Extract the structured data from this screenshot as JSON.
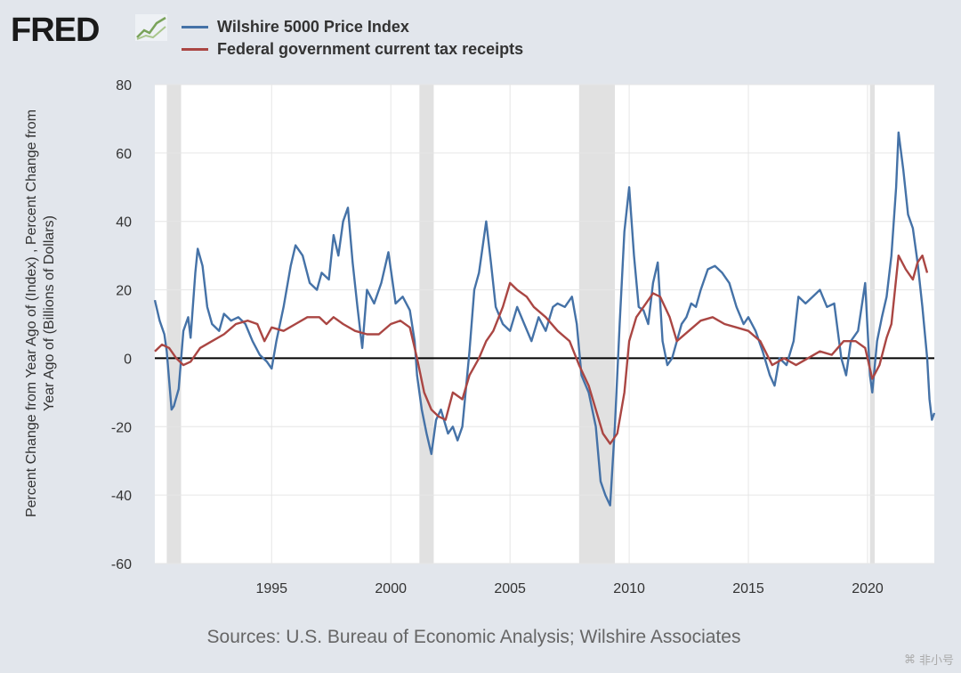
{
  "logo": {
    "text": "FRED"
  },
  "legend": [
    {
      "label": "Wilshire 5000 Price Index",
      "color": "#4572a7"
    },
    {
      "label": "Federal government current tax receipts",
      "color": "#aa4643"
    }
  ],
  "source": "Sources: U.S. Bureau of Economic Analysis; Wilshire Associates",
  "watermark": "非小号",
  "chart_data": {
    "type": "line",
    "ylabel": "Percent Change from Year Ago of (Index) , Percent Change from Year Ago of (Billions of Dollars)",
    "ylim": [
      -60,
      80
    ],
    "yticks": [
      "80",
      "60",
      "40",
      "20",
      "0",
      "-20",
      "-40",
      "-60"
    ],
    "xlim": [
      1990.1,
      2022.8
    ],
    "xticks": [
      1995,
      2000,
      2005,
      2010,
      2015,
      2020
    ],
    "xtick_labels": [
      "1995",
      "2000",
      "2005",
      "2010",
      "2015",
      "2020"
    ],
    "grid": true,
    "zero_line": true,
    "recessions": [
      [
        1990.6,
        1991.2
      ],
      [
        2001.2,
        2001.8
      ],
      [
        2007.9,
        2009.4
      ],
      [
        2020.1,
        2020.3
      ]
    ],
    "series": [
      {
        "name": "Wilshire 5000 Price Index",
        "color": "#4572a7",
        "points": [
          [
            1990.1,
            17
          ],
          [
            1990.3,
            11
          ],
          [
            1990.5,
            7
          ],
          [
            1990.6,
            2
          ],
          [
            1990.8,
            -15
          ],
          [
            1990.9,
            -14
          ],
          [
            1991.1,
            -9
          ],
          [
            1991.3,
            8
          ],
          [
            1991.5,
            12
          ],
          [
            1991.6,
            6
          ],
          [
            1991.8,
            25
          ],
          [
            1991.9,
            32
          ],
          [
            1992.1,
            27
          ],
          [
            1992.3,
            15
          ],
          [
            1992.5,
            10
          ],
          [
            1992.8,
            8
          ],
          [
            1993,
            13
          ],
          [
            1993.3,
            11
          ],
          [
            1993.6,
            12
          ],
          [
            1993.9,
            10
          ],
          [
            1994.2,
            5
          ],
          [
            1994.5,
            1
          ],
          [
            1994.8,
            -1
          ],
          [
            1995,
            -3
          ],
          [
            1995.2,
            5
          ],
          [
            1995.5,
            15
          ],
          [
            1995.8,
            27
          ],
          [
            1996,
            33
          ],
          [
            1996.3,
            30
          ],
          [
            1996.6,
            22
          ],
          [
            1996.9,
            20
          ],
          [
            1997.1,
            25
          ],
          [
            1997.4,
            23
          ],
          [
            1997.6,
            36
          ],
          [
            1997.8,
            30
          ],
          [
            1998,
            40
          ],
          [
            1998.2,
            44
          ],
          [
            1998.4,
            28
          ],
          [
            1998.6,
            15
          ],
          [
            1998.8,
            3
          ],
          [
            1999,
            20
          ],
          [
            1999.3,
            16
          ],
          [
            1999.6,
            22
          ],
          [
            1999.9,
            31
          ],
          [
            2000.2,
            16
          ],
          [
            2000.5,
            18
          ],
          [
            2000.8,
            14
          ],
          [
            2001,
            5
          ],
          [
            2001.1,
            -5
          ],
          [
            2001.3,
            -15
          ],
          [
            2001.5,
            -22
          ],
          [
            2001.7,
            -28
          ],
          [
            2001.9,
            -18
          ],
          [
            2002.1,
            -15
          ],
          [
            2002.4,
            -22
          ],
          [
            2002.6,
            -20
          ],
          [
            2002.8,
            -24
          ],
          [
            2003,
            -20
          ],
          [
            2003.3,
            2
          ],
          [
            2003.5,
            20
          ],
          [
            2003.7,
            25
          ],
          [
            2004,
            40
          ],
          [
            2004.2,
            28
          ],
          [
            2004.4,
            15
          ],
          [
            2004.7,
            10
          ],
          [
            2005,
            8
          ],
          [
            2005.3,
            15
          ],
          [
            2005.6,
            10
          ],
          [
            2005.9,
            5
          ],
          [
            2006.2,
            12
          ],
          [
            2006.5,
            8
          ],
          [
            2006.8,
            15
          ],
          [
            2007,
            16
          ],
          [
            2007.3,
            15
          ],
          [
            2007.6,
            18
          ],
          [
            2007.8,
            10
          ],
          [
            2008,
            -5
          ],
          [
            2008.3,
            -10
          ],
          [
            2008.6,
            -20
          ],
          [
            2008.8,
            -36
          ],
          [
            2009,
            -40
          ],
          [
            2009.2,
            -43
          ],
          [
            2009.4,
            -20
          ],
          [
            2009.6,
            10
          ],
          [
            2009.8,
            37
          ],
          [
            2010,
            50
          ],
          [
            2010.2,
            30
          ],
          [
            2010.4,
            15
          ],
          [
            2010.6,
            14
          ],
          [
            2010.8,
            10
          ],
          [
            2011,
            22
          ],
          [
            2011.2,
            28
          ],
          [
            2011.4,
            5
          ],
          [
            2011.6,
            -2
          ],
          [
            2011.8,
            0
          ],
          [
            2012,
            5
          ],
          [
            2012.2,
            10
          ],
          [
            2012.4,
            12
          ],
          [
            2012.6,
            16
          ],
          [
            2012.8,
            15
          ],
          [
            2013,
            20
          ],
          [
            2013.3,
            26
          ],
          [
            2013.6,
            27
          ],
          [
            2013.9,
            25
          ],
          [
            2014.2,
            22
          ],
          [
            2014.5,
            15
          ],
          [
            2014.8,
            10
          ],
          [
            2015,
            12
          ],
          [
            2015.3,
            8
          ],
          [
            2015.6,
            2
          ],
          [
            2015.9,
            -5
          ],
          [
            2016.1,
            -8
          ],
          [
            2016.3,
            0
          ],
          [
            2016.6,
            -2
          ],
          [
            2016.9,
            5
          ],
          [
            2017.1,
            18
          ],
          [
            2017.4,
            16
          ],
          [
            2017.7,
            18
          ],
          [
            2018,
            20
          ],
          [
            2018.3,
            15
          ],
          [
            2018.6,
            16
          ],
          [
            2018.9,
            0
          ],
          [
            2019.1,
            -5
          ],
          [
            2019.3,
            5
          ],
          [
            2019.6,
            8
          ],
          [
            2019.9,
            22
          ],
          [
            2020.1,
            -5
          ],
          [
            2020.2,
            -10
          ],
          [
            2020.4,
            5
          ],
          [
            2020.6,
            12
          ],
          [
            2020.8,
            18
          ],
          [
            2021,
            30
          ],
          [
            2021.2,
            50
          ],
          [
            2021.3,
            66
          ],
          [
            2021.5,
            55
          ],
          [
            2021.7,
            42
          ],
          [
            2021.9,
            38
          ],
          [
            2022.1,
            28
          ],
          [
            2022.3,
            15
          ],
          [
            2022.5,
            0
          ],
          [
            2022.6,
            -12
          ],
          [
            2022.7,
            -18
          ],
          [
            2022.8,
            -16
          ]
        ]
      },
      {
        "name": "Federal government current tax receipts",
        "color": "#aa4643",
        "points": [
          [
            1990.1,
            2
          ],
          [
            1990.4,
            4
          ],
          [
            1990.7,
            3
          ],
          [
            1991,
            0
          ],
          [
            1991.3,
            -2
          ],
          [
            1991.6,
            -1
          ],
          [
            1992,
            3
          ],
          [
            1992.5,
            5
          ],
          [
            1993,
            7
          ],
          [
            1993.5,
            10
          ],
          [
            1994,
            11
          ],
          [
            1994.4,
            10
          ],
          [
            1994.7,
            5
          ],
          [
            1995,
            9
          ],
          [
            1995.5,
            8
          ],
          [
            1996,
            10
          ],
          [
            1996.5,
            12
          ],
          [
            1997,
            12
          ],
          [
            1997.3,
            10
          ],
          [
            1997.6,
            12
          ],
          [
            1998,
            10
          ],
          [
            1998.5,
            8
          ],
          [
            1999,
            7
          ],
          [
            1999.5,
            7
          ],
          [
            2000,
            10
          ],
          [
            2000.4,
            11
          ],
          [
            2000.8,
            9
          ],
          [
            2001.1,
            0
          ],
          [
            2001.4,
            -10
          ],
          [
            2001.7,
            -15
          ],
          [
            2002,
            -17
          ],
          [
            2002.3,
            -18
          ],
          [
            2002.6,
            -10
          ],
          [
            2003,
            -12
          ],
          [
            2003.3,
            -5
          ],
          [
            2003.7,
            0
          ],
          [
            2004,
            5
          ],
          [
            2004.3,
            8
          ],
          [
            2004.7,
            15
          ],
          [
            2005,
            22
          ],
          [
            2005.3,
            20
          ],
          [
            2005.7,
            18
          ],
          [
            2006,
            15
          ],
          [
            2006.5,
            12
          ],
          [
            2007,
            8
          ],
          [
            2007.5,
            5
          ],
          [
            2007.9,
            -2
          ],
          [
            2008.3,
            -8
          ],
          [
            2008.6,
            -15
          ],
          [
            2008.9,
            -22
          ],
          [
            2009.2,
            -25
          ],
          [
            2009.5,
            -22
          ],
          [
            2009.8,
            -10
          ],
          [
            2010,
            5
          ],
          [
            2010.3,
            12
          ],
          [
            2010.7,
            16
          ],
          [
            2011,
            19
          ],
          [
            2011.3,
            18
          ],
          [
            2011.7,
            12
          ],
          [
            2012,
            5
          ],
          [
            2012.5,
            8
          ],
          [
            2013,
            11
          ],
          [
            2013.5,
            12
          ],
          [
            2014,
            10
          ],
          [
            2014.5,
            9
          ],
          [
            2015,
            8
          ],
          [
            2015.5,
            5
          ],
          [
            2016,
            -2
          ],
          [
            2016.5,
            0
          ],
          [
            2017,
            -2
          ],
          [
            2017.5,
            0
          ],
          [
            2018,
            2
          ],
          [
            2018.5,
            1
          ],
          [
            2019,
            5
          ],
          [
            2019.5,
            5
          ],
          [
            2019.9,
            3
          ],
          [
            2020.2,
            -6
          ],
          [
            2020.5,
            -2
          ],
          [
            2020.8,
            6
          ],
          [
            2021,
            10
          ],
          [
            2021.3,
            30
          ],
          [
            2021.6,
            26
          ],
          [
            2021.9,
            23
          ],
          [
            2022.1,
            28
          ],
          [
            2022.3,
            30
          ],
          [
            2022.5,
            25
          ]
        ]
      }
    ]
  }
}
